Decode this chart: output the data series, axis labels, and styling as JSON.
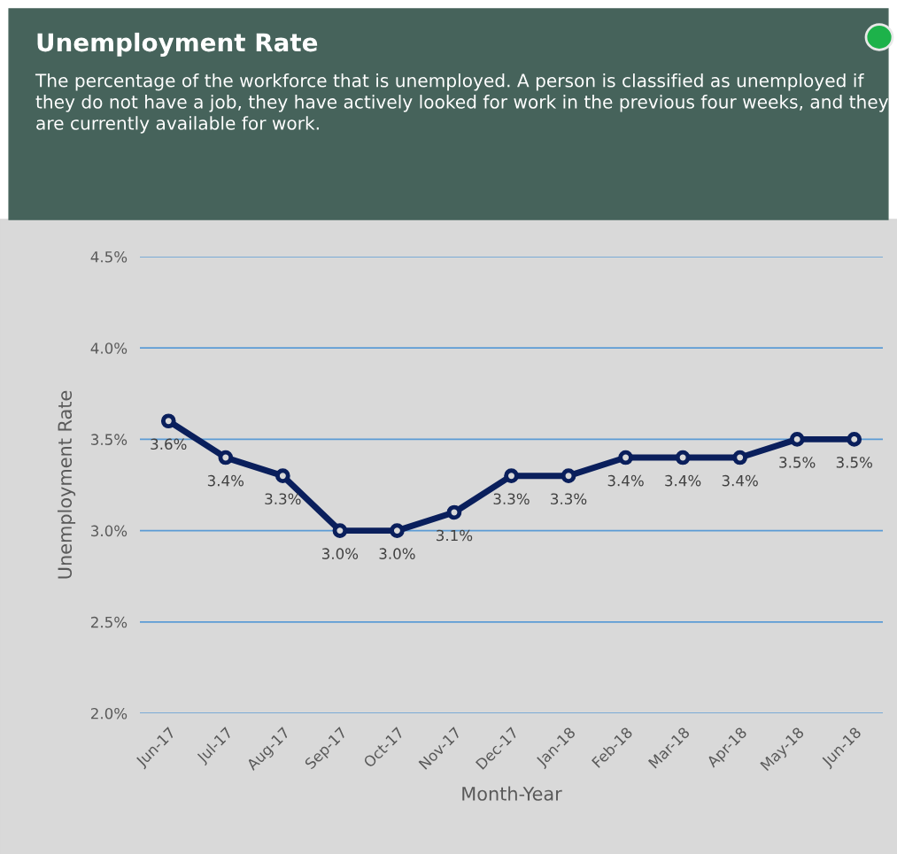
{
  "chart_data": {
    "type": "line",
    "title": "Unemployment Rate",
    "subtitle": "The percentage of the workforce that is unemployed. A person is classified as unemployed if they do not have a job, they have actively looked for work in the previous four weeks, and they are currently available for work.",
    "xlabel": "Month-Year",
    "ylabel": "Unemployment Rate",
    "categories": [
      "Jun-17",
      "Jul-17",
      "Aug-17",
      "Sep-17",
      "Oct-17",
      "Nov-17",
      "Dec-17",
      "Jan-18",
      "Feb-18",
      "Mar-18",
      "Apr-18",
      "May-18",
      "Jun-18"
    ],
    "series": [
      {
        "color": "#0a1f5c",
        "values": [
          3.6,
          3.4,
          3.3,
          3.0,
          3.0,
          3.1,
          3.3,
          3.3,
          3.4,
          3.4,
          3.4,
          3.5,
          3.5
        ],
        "value_labels": [
          "3.6%",
          "3.4%",
          "3.3%",
          "3.0%",
          "3.0%",
          "3.1%",
          "3.3%",
          "3.3%",
          "3.4%",
          "3.4%",
          "3.4%",
          "3.5%",
          "3.5%"
        ]
      }
    ],
    "ylim": [
      2.0,
      4.5
    ],
    "yticks": [
      {
        "value": 2.0,
        "label": "2.0%"
      },
      {
        "value": 2.5,
        "label": "2.5%"
      },
      {
        "value": 3.0,
        "label": "3.0%"
      },
      {
        "value": 3.5,
        "label": "3.5%"
      },
      {
        "value": 4.0,
        "label": "4.0%"
      },
      {
        "value": 4.5,
        "label": "4.5%"
      }
    ],
    "grid": "y",
    "marker": "circle",
    "line_style": "solid",
    "legend": false
  }
}
